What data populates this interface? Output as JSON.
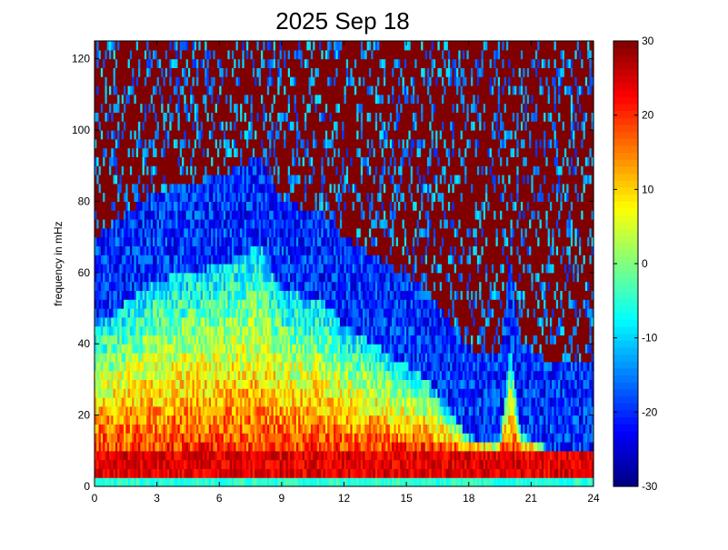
{
  "chart_data": {
    "type": "heatmap",
    "title": "2025 Sep 18",
    "xlabel": "",
    "ylabel": "frequency in mHz",
    "xlim": [
      0,
      24
    ],
    "ylim": [
      0,
      125
    ],
    "x_ticks": [
      "0",
      "3",
      "6",
      "9",
      "12",
      "15",
      "18",
      "21",
      "24"
    ],
    "y_ticks": [
      "0",
      "20",
      "40",
      "60",
      "80",
      "100",
      "120"
    ],
    "colorbar": {
      "colormap": "jet",
      "clim": [
        -30,
        30
      ],
      "ticks": [
        "-30",
        "-20",
        "-10",
        "0",
        "10",
        "20",
        "30"
      ]
    },
    "grid": false,
    "x_resolution_hours": 0.1,
    "y_resolution_mhz": 2.5,
    "power_envelope": {
      "description_units": "colour scale units",
      "low_frequency_band_mhz": [
        0,
        10
      ],
      "low_frequency_level": 28,
      "mid_level_max": 20,
      "background_level": 30,
      "quiet_level": -20,
      "activity_edge_mhz_by_hour": [
        [
          0,
          45
        ],
        [
          3,
          58
        ],
        [
          6,
          62
        ],
        [
          8,
          68
        ],
        [
          9,
          55
        ],
        [
          11,
          52
        ],
        [
          12,
          45
        ],
        [
          14,
          38
        ],
        [
          16,
          30
        ],
        [
          17,
          22
        ],
        [
          18,
          14
        ],
        [
          19.5,
          12
        ],
        [
          20,
          40
        ],
        [
          20.5,
          15
        ],
        [
          22,
          10
        ],
        [
          24,
          10
        ]
      ]
    }
  }
}
